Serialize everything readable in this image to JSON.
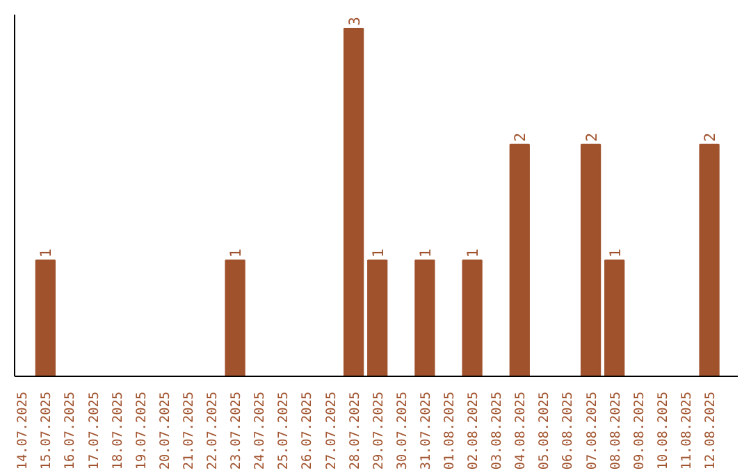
{
  "chart_data": {
    "type": "bar",
    "categories": [
      "14.07.2025",
      "15.07.2025",
      "16.07.2025",
      "17.07.2025",
      "18.07.2025",
      "19.07.2025",
      "20.07.2025",
      "21.07.2025",
      "22.07.2025",
      "23.07.2025",
      "24.07.2025",
      "25.07.2025",
      "26.07.2025",
      "27.07.2025",
      "28.07.2025",
      "29.07.2025",
      "30.07.2025",
      "31.07.2025",
      "01.08.2025",
      "02.08.2025",
      "03.08.2025",
      "04.08.2025",
      "05.08.2025",
      "06.08.2025",
      "07.08.2025",
      "08.08.2025",
      "09.08.2025",
      "10.08.2025",
      "11.08.2025",
      "12.08.2025"
    ],
    "values": [
      0,
      1,
      0,
      0,
      0,
      0,
      0,
      0,
      0,
      1,
      0,
      0,
      0,
      0,
      3,
      1,
      0,
      1,
      0,
      1,
      0,
      2,
      0,
      0,
      2,
      1,
      0,
      0,
      0,
      2
    ],
    "value_labels": [
      null,
      "1",
      null,
      null,
      null,
      null,
      null,
      null,
      null,
      "1",
      null,
      null,
      null,
      null,
      "3",
      "1",
      null,
      "1",
      null,
      "1",
      null,
      "2",
      null,
      null,
      "2",
      "1",
      null,
      null,
      null,
      "2"
    ],
    "color": "#a0522d",
    "tick_labels": "x",
    "grid": false
  }
}
